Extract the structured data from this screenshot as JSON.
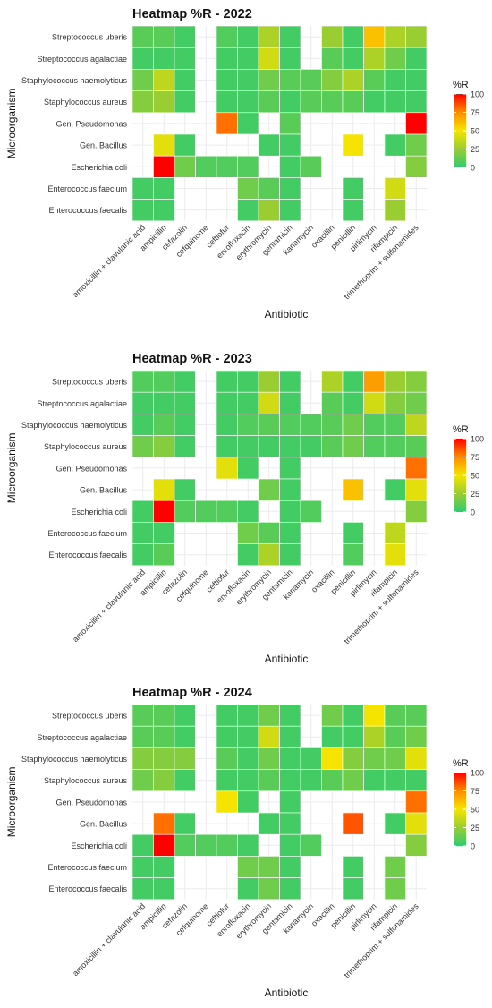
{
  "figure": {
    "colorbar": {
      "title": "%R",
      "ticks": [
        0,
        25,
        50,
        75,
        100
      ],
      "colors": [
        "#2ECC71",
        "#9ACD32",
        "#F5E400",
        "#FF8C00",
        "#FF0000"
      ]
    }
  },
  "chart_data": [
    {
      "type": "heatmap",
      "title": "Heatmap %R - 2022",
      "xlabel": "Antibiotic",
      "ylabel": "Microorganism",
      "x": [
        "amoxicillin + clavulanic acid",
        "ampicillin",
        "cefazolin",
        "cefquinome",
        "ceftiofur",
        "enrofloxacin",
        "erythromycin",
        "gentamicin",
        "kanamycin",
        "oxacillin",
        "penicillin",
        "pirlimycin",
        "rifampicin",
        "trimethoprim + sulfonamides"
      ],
      "y": [
        "Streptococcus uberis",
        "Streptococcus agalactiae",
        "Staphylococcus haemolyticus",
        "Staphylococcus aureus",
        "Gen. Pseudomonas",
        "Gen. Bacillus",
        "Escherichia coli",
        "Enterococcus faecium",
        "Enterococcus faecalis"
      ],
      "zlim": [
        0,
        100
      ],
      "values": [
        [
          10,
          10,
          5,
          null,
          8,
          5,
          30,
          5,
          null,
          25,
          5,
          60,
          30,
          25
        ],
        [
          5,
          5,
          5,
          null,
          5,
          5,
          40,
          5,
          null,
          10,
          5,
          30,
          15,
          5
        ],
        [
          15,
          35,
          5,
          null,
          5,
          5,
          15,
          10,
          10,
          20,
          30,
          10,
          5,
          5
        ],
        [
          20,
          25,
          5,
          null,
          5,
          5,
          10,
          5,
          10,
          10,
          10,
          5,
          5,
          5
        ],
        [
          null,
          null,
          null,
          null,
          80,
          5,
          null,
          10,
          null,
          null,
          null,
          null,
          null,
          100
        ],
        [
          null,
          45,
          5,
          null,
          null,
          null,
          5,
          5,
          null,
          null,
          50,
          null,
          5,
          15
        ],
        [
          null,
          100,
          15,
          8,
          8,
          8,
          null,
          5,
          10,
          null,
          null,
          null,
          null,
          20
        ],
        [
          5,
          5,
          null,
          null,
          null,
          15,
          10,
          5,
          null,
          null,
          5,
          null,
          40,
          null
        ],
        [
          5,
          5,
          null,
          null,
          null,
          5,
          25,
          5,
          null,
          null,
          5,
          null,
          25,
          null
        ]
      ]
    },
    {
      "type": "heatmap",
      "title": "Heatmap %R - 2023",
      "xlabel": "Antibiotic",
      "ylabel": "Microorganism",
      "x": [
        "amoxicillin + clavulanic acid",
        "ampicillin",
        "cefazolin",
        "cefquinome",
        "ceftiofur",
        "enrofloxacin",
        "erythromycin",
        "gentamicin",
        "kanamycin",
        "oxacillin",
        "penicillin",
        "pirlimycin",
        "rifampicin",
        "trimethoprim + sulfonamides"
      ],
      "y": [
        "Streptococcus uberis",
        "Streptococcus agalactiae",
        "Staphylococcus haemolyticus",
        "Staphylococcus aureus",
        "Gen. Pseudomonas",
        "Gen. Bacillus",
        "Escherichia coli",
        "Enterococcus faecium",
        "Enterococcus faecalis"
      ],
      "zlim": [
        0,
        100
      ],
      "values": [
        [
          8,
          8,
          5,
          null,
          5,
          5,
          25,
          5,
          null,
          30,
          5,
          70,
          25,
          20
        ],
        [
          5,
          5,
          5,
          null,
          5,
          5,
          40,
          5,
          null,
          10,
          5,
          40,
          20,
          15
        ],
        [
          5,
          10,
          5,
          null,
          5,
          8,
          10,
          8,
          8,
          10,
          15,
          8,
          8,
          35
        ],
        [
          15,
          20,
          5,
          null,
          5,
          5,
          5,
          5,
          5,
          10,
          15,
          8,
          8,
          10
        ],
        [
          null,
          null,
          null,
          null,
          45,
          5,
          null,
          5,
          null,
          null,
          null,
          null,
          null,
          80
        ],
        [
          null,
          45,
          5,
          null,
          null,
          null,
          15,
          5,
          null,
          null,
          60,
          null,
          5,
          45
        ],
        [
          5,
          100,
          8,
          8,
          8,
          5,
          null,
          5,
          8,
          null,
          null,
          null,
          null,
          20
        ],
        [
          5,
          5,
          null,
          null,
          null,
          15,
          10,
          5,
          null,
          null,
          5,
          null,
          35,
          null
        ],
        [
          5,
          10,
          null,
          null,
          null,
          5,
          30,
          5,
          null,
          null,
          8,
          null,
          45,
          null
        ]
      ]
    },
    {
      "type": "heatmap",
      "title": "Heatmap %R - 2024",
      "xlabel": "Antibiotic",
      "ylabel": "Microorganism",
      "x": [
        "amoxicillin + clavulanic acid",
        "ampicillin",
        "cefazolin",
        "cefquinome",
        "ceftiofur",
        "enrofloxacin",
        "erythromycin",
        "gentamicin",
        "kanamycin",
        "oxacillin",
        "penicillin",
        "pirlimycin",
        "rifampicin",
        "trimethoprim + sulfonamides"
      ],
      "y": [
        "Streptococcus uberis",
        "Streptococcus agalactiae",
        "Staphylococcus haemolyticus",
        "Staphylococcus aureus",
        "Gen. Pseudomonas",
        "Gen. Bacillus",
        "Escherichia coli",
        "Enterococcus faecium",
        "Enterococcus faecalis"
      ],
      "zlim": [
        0,
        100
      ],
      "values": [
        [
          10,
          10,
          5,
          null,
          5,
          5,
          15,
          5,
          null,
          15,
          5,
          50,
          10,
          10
        ],
        [
          10,
          10,
          5,
          null,
          5,
          5,
          40,
          5,
          null,
          5,
          5,
          30,
          10,
          15
        ],
        [
          20,
          20,
          20,
          null,
          10,
          5,
          15,
          5,
          5,
          50,
          20,
          15,
          15,
          45
        ],
        [
          15,
          20,
          5,
          null,
          5,
          5,
          10,
          5,
          5,
          10,
          15,
          5,
          5,
          5
        ],
        [
          null,
          null,
          null,
          null,
          50,
          5,
          null,
          5,
          null,
          null,
          null,
          null,
          null,
          80
        ],
        [
          null,
          80,
          5,
          null,
          null,
          null,
          5,
          5,
          null,
          null,
          85,
          null,
          5,
          45
        ],
        [
          5,
          100,
          8,
          8,
          8,
          5,
          null,
          5,
          8,
          null,
          null,
          null,
          null,
          20
        ],
        [
          5,
          5,
          null,
          null,
          null,
          15,
          15,
          5,
          null,
          null,
          5,
          null,
          15,
          null
        ],
        [
          5,
          5,
          null,
          null,
          null,
          5,
          15,
          5,
          null,
          null,
          5,
          null,
          15,
          null
        ]
      ]
    }
  ]
}
